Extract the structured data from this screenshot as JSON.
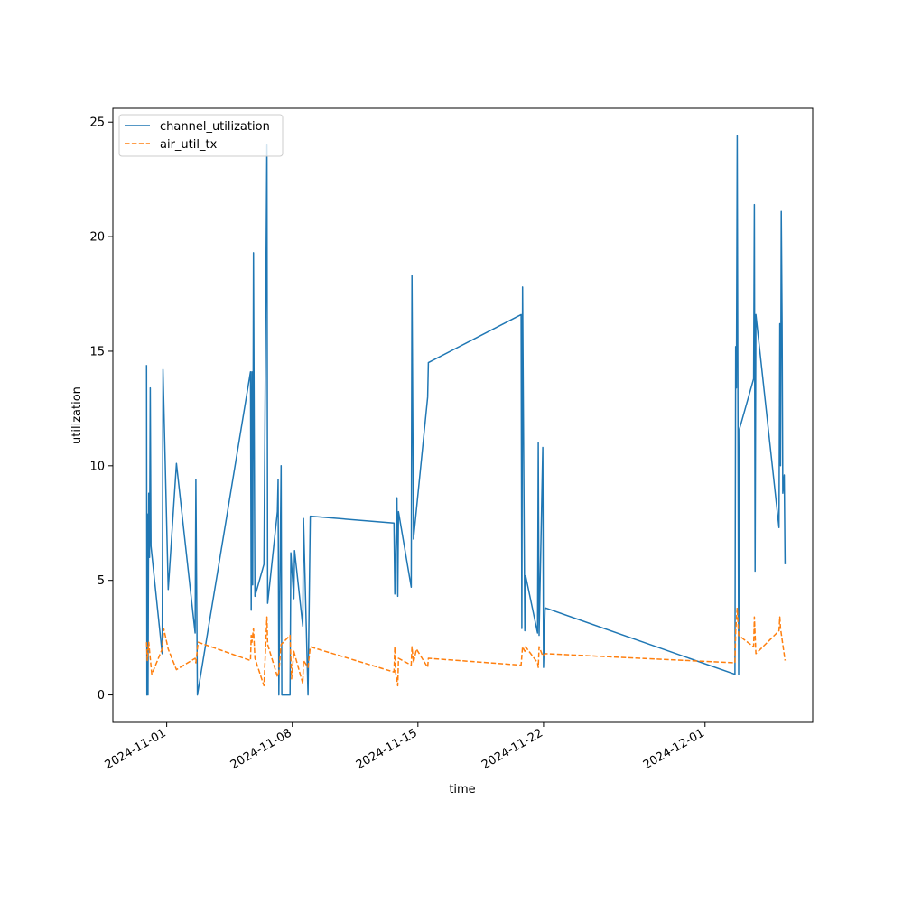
{
  "chart_data": {
    "type": "line",
    "title": "",
    "xlabel": "time",
    "ylabel": "utilization",
    "x_axis_type": "date",
    "xlim": [
      "2024-10-29T00:00",
      "2024-12-07T00:00"
    ],
    "ylim": [
      -1.2,
      25.6
    ],
    "x_ticks": [
      "2024-11-01",
      "2024-11-08",
      "2024-11-15",
      "2024-11-22",
      "2024-12-01"
    ],
    "y_ticks": [
      0,
      5,
      10,
      15,
      20,
      25
    ],
    "grid": false,
    "legend": "top-left",
    "series": [
      {
        "name": "channel_utilization",
        "color": "#1f77b4",
        "style": "solid",
        "points": [
          [
            "2024-10-30T21:00",
            14.4
          ],
          [
            "2024-10-30T21:30",
            0.0
          ],
          [
            "2024-10-30T22:00",
            7.9
          ],
          [
            "2024-10-30T23:00",
            0.0
          ],
          [
            "2024-10-31T00:00",
            8.8
          ],
          [
            "2024-10-31T01:00",
            6.0
          ],
          [
            "2024-10-31T02:00",
            13.4
          ],
          [
            "2024-10-31T03:00",
            6.5
          ],
          [
            "2024-10-31T18:00",
            1.8
          ],
          [
            "2024-10-31T19:00",
            14.2
          ],
          [
            "2024-11-01T02:00",
            4.6
          ],
          [
            "2024-11-01T13:00",
            10.1
          ],
          [
            "2024-11-02T14:00",
            2.7
          ],
          [
            "2024-11-02T15:00",
            9.4
          ],
          [
            "2024-11-02T17:00",
            0.0
          ],
          [
            "2024-11-05T16:00",
            14.1
          ],
          [
            "2024-11-05T17:00",
            3.7
          ],
          [
            "2024-11-05T18:00",
            14.1
          ],
          [
            "2024-11-05T19:00",
            4.8
          ],
          [
            "2024-11-05T20:00",
            19.3
          ],
          [
            "2024-11-05T22:00",
            4.3
          ],
          [
            "2024-11-06T10:00",
            5.7
          ],
          [
            "2024-11-06T14:00",
            24.0
          ],
          [
            "2024-11-06T15:00",
            4.0
          ],
          [
            "2024-11-07T04:00",
            8.0
          ],
          [
            "2024-11-07T05:00",
            9.4
          ],
          [
            "2024-11-07T06:00",
            0.0
          ],
          [
            "2024-11-07T09:00",
            10.0
          ],
          [
            "2024-11-07T10:00",
            0.0
          ],
          [
            "2024-11-07T21:00",
            0.0
          ],
          [
            "2024-11-07T22:00",
            6.2
          ],
          [
            "2024-11-08T02:00",
            4.2
          ],
          [
            "2024-11-08T03:00",
            6.3
          ],
          [
            "2024-11-08T14:00",
            3.0
          ],
          [
            "2024-11-08T15:00",
            7.7
          ],
          [
            "2024-11-08T21:00",
            0.0
          ],
          [
            "2024-11-09T00:00",
            7.8
          ],
          [
            "2024-11-13T16:00",
            7.5
          ],
          [
            "2024-11-13T17:00",
            4.4
          ],
          [
            "2024-11-13T20:00",
            8.6
          ],
          [
            "2024-11-13T21:00",
            4.3
          ],
          [
            "2024-11-13T22:00",
            8.0
          ],
          [
            "2024-11-14T15:00",
            4.7
          ],
          [
            "2024-11-14T16:00",
            18.3
          ],
          [
            "2024-11-14T18:00",
            6.8
          ],
          [
            "2024-11-15T13:00",
            13.0
          ],
          [
            "2024-11-15T14:00",
            14.5
          ],
          [
            "2024-11-20T18:00",
            16.6
          ],
          [
            "2024-11-20T19:00",
            2.9
          ],
          [
            "2024-11-20T20:00",
            17.8
          ],
          [
            "2024-11-20T23:00",
            2.8
          ],
          [
            "2024-11-21T00:00",
            5.2
          ],
          [
            "2024-11-21T16:00",
            2.7
          ],
          [
            "2024-11-21T17:00",
            11.0
          ],
          [
            "2024-11-21T18:00",
            2.6
          ],
          [
            "2024-11-21T23:00",
            10.8
          ],
          [
            "2024-11-22T00:00",
            1.2
          ],
          [
            "2024-11-22T02:00",
            3.8
          ],
          [
            "2024-12-02T16:00",
            0.9
          ],
          [
            "2024-12-02T17:00",
            15.2
          ],
          [
            "2024-12-02T18:00",
            13.4
          ],
          [
            "2024-12-02T19:00",
            24.4
          ],
          [
            "2024-12-02T21:00",
            0.9
          ],
          [
            "2024-12-02T22:00",
            11.6
          ],
          [
            "2024-12-03T17:00",
            13.8
          ],
          [
            "2024-12-03T18:00",
            21.4
          ],
          [
            "2024-12-03T19:00",
            5.4
          ],
          [
            "2024-12-03T20:00",
            16.6
          ],
          [
            "2024-12-05T03:00",
            7.3
          ],
          [
            "2024-12-05T04:00",
            16.2
          ],
          [
            "2024-12-05T05:00",
            10.0
          ],
          [
            "2024-12-05T06:00",
            21.1
          ],
          [
            "2024-12-05T07:00",
            16.3
          ],
          [
            "2024-12-05T08:00",
            8.8
          ],
          [
            "2024-12-05T10:00",
            9.6
          ],
          [
            "2024-12-05T11:00",
            5.7
          ]
        ]
      },
      {
        "name": "air_util_tx",
        "color": "#ff7f0e",
        "style": "dashed",
        "points": [
          [
            "2024-10-30T21:00",
            2.3
          ],
          [
            "2024-10-30T22:00",
            1.5
          ],
          [
            "2024-10-31T00:00",
            2.3
          ],
          [
            "2024-10-31T04:00",
            0.9
          ],
          [
            "2024-10-31T18:00",
            2.0
          ],
          [
            "2024-10-31T20:00",
            2.9
          ],
          [
            "2024-11-01T02:00",
            2.0
          ],
          [
            "2024-11-01T13:00",
            1.1
          ],
          [
            "2024-11-02T14:00",
            1.6
          ],
          [
            "2024-11-02T15:00",
            1.4
          ],
          [
            "2024-11-02T18:00",
            2.3
          ],
          [
            "2024-11-05T16:00",
            1.5
          ],
          [
            "2024-11-05T17:00",
            2.6
          ],
          [
            "2024-11-05T18:00",
            2.3
          ],
          [
            "2024-11-05T20:00",
            2.9
          ],
          [
            "2024-11-05T22:00",
            1.6
          ],
          [
            "2024-11-06T10:00",
            0.4
          ],
          [
            "2024-11-06T14:00",
            3.4
          ],
          [
            "2024-11-06T15:00",
            2.2
          ],
          [
            "2024-11-07T04:00",
            0.8
          ],
          [
            "2024-11-07T06:00",
            1.0
          ],
          [
            "2024-11-07T09:00",
            2.2
          ],
          [
            "2024-11-07T21:00",
            2.6
          ],
          [
            "2024-11-07T23:00",
            0.7
          ],
          [
            "2024-11-08T02:00",
            1.9
          ],
          [
            "2024-11-08T14:00",
            0.5
          ],
          [
            "2024-11-08T15:00",
            1.5
          ],
          [
            "2024-11-08T21:00",
            1.2
          ],
          [
            "2024-11-09T00:00",
            2.1
          ],
          [
            "2024-11-13T16:00",
            1.0
          ],
          [
            "2024-11-13T17:00",
            2.1
          ],
          [
            "2024-11-13T18:00",
            1.0
          ],
          [
            "2024-11-13T21:00",
            0.4
          ],
          [
            "2024-11-13T22:00",
            1.6
          ],
          [
            "2024-11-14T15:00",
            1.3
          ],
          [
            "2024-11-14T16:00",
            2.1
          ],
          [
            "2024-11-14T18:00",
            1.4
          ],
          [
            "2024-11-14T22:00",
            2.0
          ],
          [
            "2024-11-15T13:00",
            1.2
          ],
          [
            "2024-11-15T14:00",
            1.6
          ],
          [
            "2024-11-20T18:00",
            1.3
          ],
          [
            "2024-11-20T20:00",
            2.1
          ],
          [
            "2024-11-20T23:00",
            1.9
          ],
          [
            "2024-11-21T00:00",
            2.1
          ],
          [
            "2024-11-21T16:00",
            1.4
          ],
          [
            "2024-11-21T17:00",
            1.2
          ],
          [
            "2024-11-21T18:00",
            2.1
          ],
          [
            "2024-11-21T23:00",
            1.7
          ],
          [
            "2024-11-22T02:00",
            1.8
          ],
          [
            "2024-12-02T16:00",
            1.4
          ],
          [
            "2024-12-02T17:00",
            2.8
          ],
          [
            "2024-12-02T19:00",
            3.8
          ],
          [
            "2024-12-02T21:00",
            2.6
          ],
          [
            "2024-12-03T17:00",
            2.1
          ],
          [
            "2024-12-03T18:00",
            3.4
          ],
          [
            "2024-12-03T20:00",
            1.8
          ],
          [
            "2024-12-05T03:00",
            2.8
          ],
          [
            "2024-12-05T04:00",
            3.4
          ],
          [
            "2024-12-05T05:00",
            2.9
          ],
          [
            "2024-12-05T11:00",
            1.5
          ]
        ]
      }
    ]
  }
}
